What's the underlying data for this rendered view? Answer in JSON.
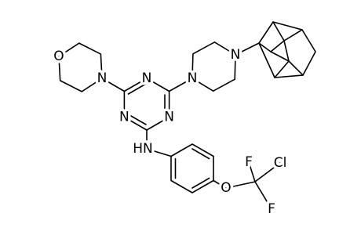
{
  "atoms": [
    "O",
    "N",
    "N",
    "N",
    "N",
    "N",
    "N",
    "HN",
    "O",
    "F",
    "Cl",
    "F"
  ]
}
